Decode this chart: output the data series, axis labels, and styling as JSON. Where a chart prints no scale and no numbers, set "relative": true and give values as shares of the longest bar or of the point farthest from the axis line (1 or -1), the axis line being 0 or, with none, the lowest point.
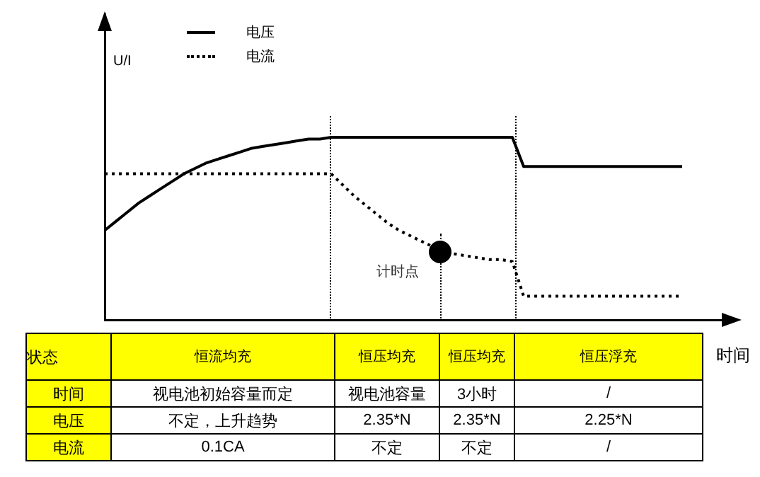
{
  "chart_data": {
    "type": "line",
    "relative": true,
    "ylabel": "U/I",
    "xlabel": "时间",
    "legend": "top left",
    "grid": false,
    "categories": [
      null,
      null,
      null,
      null,
      null,
      null,
      null,
      null,
      null,
      null,
      null,
      null,
      null,
      null,
      null,
      null,
      null,
      null,
      null,
      null,
      null,
      null,
      null,
      null,
      null,
      null,
      null,
      null,
      null,
      null,
      null,
      null,
      null,
      null,
      null,
      null,
      null,
      null,
      null,
      null,
      null,
      null,
      null,
      null,
      null,
      null,
      null,
      null,
      null,
      null,
      null,
      null
    ],
    "series": [
      {
        "name": "电压",
        "color": "#000000",
        "line_style": "solid",
        "marker": "none",
        "values": [
          0.49,
          0.54,
          0.59,
          0.64,
          0.68,
          0.72,
          0.76,
          0.8,
          0.83,
          0.86,
          0.88,
          0.9,
          0.92,
          0.94,
          0.95,
          0.96,
          0.97,
          0.98,
          0.99,
          0.99,
          1,
          1,
          1,
          1,
          1,
          1,
          1,
          1,
          1,
          1,
          1,
          1,
          1,
          1,
          1,
          1,
          1,
          0.84,
          0.84,
          0.84,
          0.84,
          0.84,
          0.84,
          0.84,
          0.84,
          0.84,
          0.84,
          0.84,
          0.84,
          0.84,
          0.84,
          0.84
        ]
      },
      {
        "name": "电流",
        "color": "#000000",
        "line_style": "dotted",
        "marker": "none",
        "values": [
          0.8,
          0.8,
          0.8,
          0.8,
          0.8,
          0.8,
          0.8,
          0.8,
          0.8,
          0.8,
          0.8,
          0.8,
          0.8,
          0.8,
          0.8,
          0.8,
          0.8,
          0.8,
          0.8,
          0.8,
          0.8,
          0.74,
          0.68,
          0.63,
          0.58,
          0.53,
          0.49,
          0.46,
          0.43,
          0.4,
          0.37,
          0.36,
          0.35,
          0.34,
          0.33,
          0.33,
          0.32,
          0.13,
          0.13,
          0.13,
          0.13,
          0.13,
          0.13,
          0.13,
          0.13,
          0.13,
          0.13,
          0.13,
          0.13,
          0.13,
          0.13,
          0.13
        ]
      }
    ],
    "annotations": [
      "计时点",
      "状态",
      "恒流均充",
      "恒压均充",
      "恒压均充",
      "恒压浮充",
      "时间",
      "视电池初始容量而定",
      "视电池容量",
      "3小时",
      "/",
      "电压",
      "不定，上升趋势",
      "2.35*N",
      "2.35*N",
      "2.25*N",
      "电流",
      "0.1CA",
      "不定",
      "不定",
      "/"
    ]
  }
}
